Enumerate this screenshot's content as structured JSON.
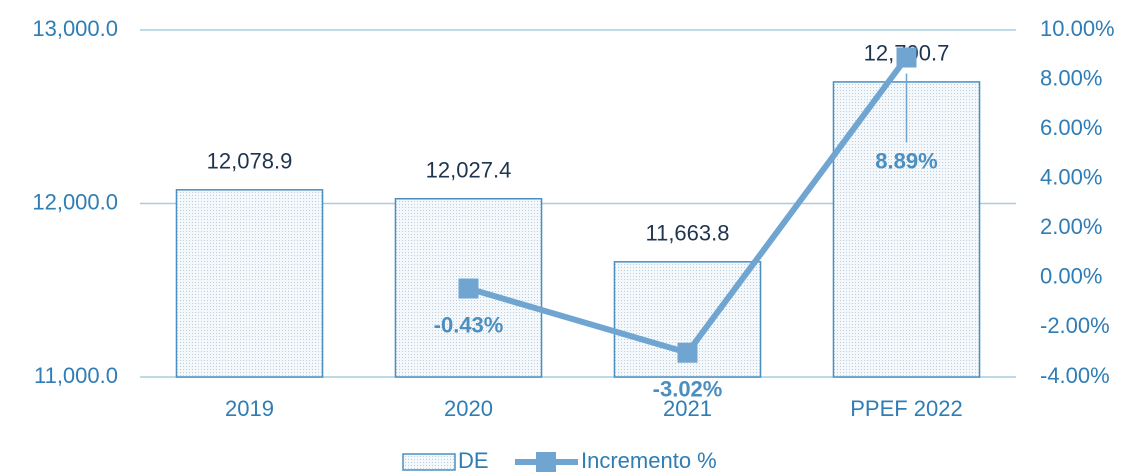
{
  "chart_data": {
    "type": "bar",
    "categories": [
      "2019",
      "2020",
      "2021",
      "PPEF 2022"
    ],
    "series": [
      {
        "name": "DE",
        "type": "bar",
        "color": "#4a8fc0",
        "values": [
          12078.9,
          12027.4,
          11663.8,
          12700.7
        ],
        "value_labels": [
          "12,078.9",
          "12,027.4",
          "11,663.8",
          "12,700.7"
        ]
      },
      {
        "name": "Incremento %",
        "type": "line",
        "axis": "y2",
        "color": "#6fa5d0",
        "values": [
          null,
          -0.43,
          -3.02,
          8.89
        ],
        "value_labels": [
          null,
          "-0.43%",
          "-3.02%",
          "8.89%"
        ]
      }
    ],
    "ylim": [
      11000,
      13000
    ],
    "yticks": [
      {
        "value": 11000,
        "label": "11,000.0"
      },
      {
        "value": 12000,
        "label": "12,000.0"
      },
      {
        "value": 13000,
        "label": "13,000.0"
      }
    ],
    "y2lim": [
      -4,
      10
    ],
    "y2ticks": [
      {
        "value": -4,
        "label": "-4.00%"
      },
      {
        "value": -2,
        "label": "-2.00%"
      },
      {
        "value": 0,
        "label": "0.00%"
      },
      {
        "value": 2,
        "label": "2.00%"
      },
      {
        "value": 4,
        "label": "4.00%"
      },
      {
        "value": 6,
        "label": "6.00%"
      },
      {
        "value": 8,
        "label": "8.00%"
      },
      {
        "value": 10,
        "label": "10.00%"
      }
    ],
    "grid": true,
    "legend": "bottom"
  }
}
